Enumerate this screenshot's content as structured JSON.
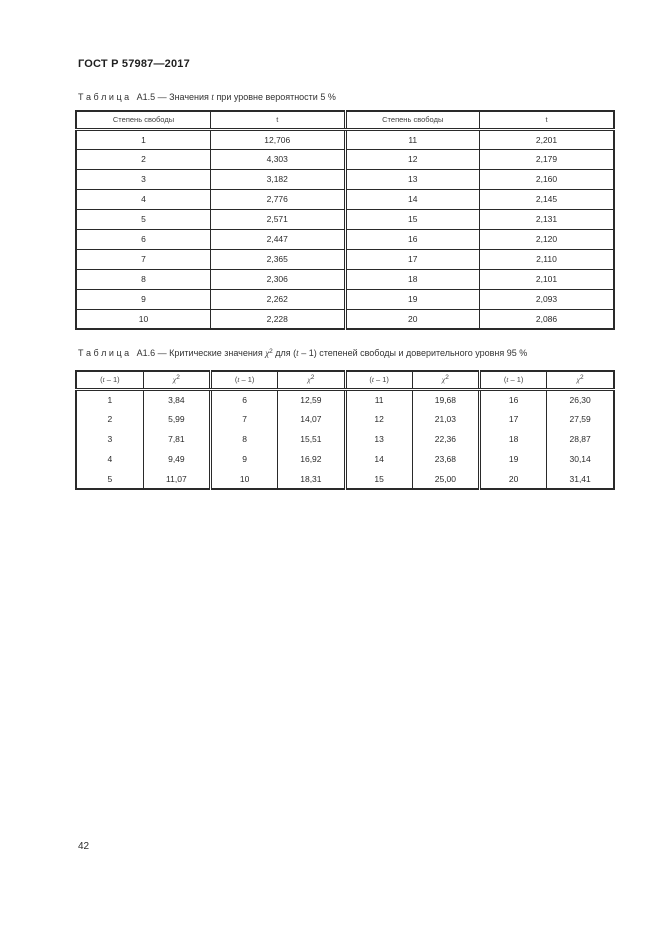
{
  "page": {
    "standard_number": "ГОСТ Р 57987—2017",
    "page_number": "42"
  },
  "colors": {
    "text": "#262626",
    "table_border": "#2a2a2a",
    "background": "#ffffff"
  },
  "table_a15": {
    "caption": {
      "label": "Т а б л и ц а   А1.5",
      "dash": " — ",
      "text_pre": "Значения ",
      "var": "t",
      "text_post": " при уровне вероятности 5 %"
    },
    "headers": {
      "df": "Степень свободы",
      "t": "t"
    },
    "rows": [
      [
        "1",
        "12,706",
        "11",
        "2,201"
      ],
      [
        "2",
        "4,303",
        "12",
        "2,179"
      ],
      [
        "3",
        "3,182",
        "13",
        "2,160"
      ],
      [
        "4",
        "2,776",
        "14",
        "2,145"
      ],
      [
        "5",
        "2,571",
        "15",
        "2,131"
      ],
      [
        "6",
        "2,447",
        "16",
        "2,120"
      ],
      [
        "7",
        "2,365",
        "17",
        "2,110"
      ],
      [
        "8",
        "2,306",
        "18",
        "2,101"
      ],
      [
        "9",
        "2,262",
        "19",
        "2,093"
      ],
      [
        "10",
        "2,228",
        "20",
        "2,086"
      ]
    ]
  },
  "table_a16": {
    "caption": {
      "label": "Т а б л и ц а   А1.6",
      "dash": " — ",
      "text_pre": "Критические значения ",
      "chi": "χ",
      "chi_sup": "2",
      "text_mid": " для (",
      "var": "t",
      "text_post": " – 1) степеней свободы и доверительного уровня 95 %"
    },
    "headers": {
      "df_open": "(",
      "df_var": "t",
      "df_rest": " – 1)",
      "chi": "χ",
      "chi_sup": "2"
    },
    "rows": [
      [
        "1",
        "3,84",
        "6",
        "12,59",
        "11",
        "19,68",
        "16",
        "26,30"
      ],
      [
        "2",
        "5,99",
        "7",
        "14,07",
        "12",
        "21,03",
        "17",
        "27,59"
      ],
      [
        "3",
        "7,81",
        "8",
        "15,51",
        "13",
        "22,36",
        "18",
        "28,87"
      ],
      [
        "4",
        "9,49",
        "9",
        "16,92",
        "14",
        "23,68",
        "19",
        "30,14"
      ],
      [
        "5",
        "11,07",
        "10",
        "18,31",
        "15",
        "25,00",
        "20",
        "31,41"
      ]
    ]
  }
}
